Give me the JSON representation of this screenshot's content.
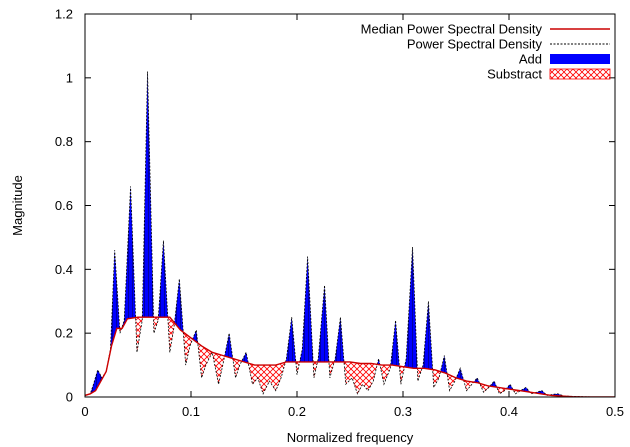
{
  "chart_data": {
    "type": "area",
    "xlabel": "Normalized frequency",
    "ylabel": "Magnitude",
    "xlim": [
      0,
      0.5
    ],
    "ylim": [
      0,
      1.2
    ],
    "xticks": [
      0,
      0.1,
      0.2,
      0.3,
      0.4,
      0.5
    ],
    "xtick_labels": [
      "0",
      "0.1",
      "0.2",
      "0.3",
      "0.4",
      "0.5"
    ],
    "yticks": [
      0,
      0.2,
      0.4,
      0.6,
      0.8,
      1.0,
      1.2
    ],
    "ytick_labels": [
      "0",
      "0.2",
      "0.4",
      "0.6",
      "0.8",
      "1",
      "1.2"
    ],
    "grid": false,
    "legend_position": "top-right",
    "legend": [
      {
        "label": "Median Power Spectral Density",
        "style": "line",
        "color": "#cc0000"
      },
      {
        "label": "Power Spectral Density",
        "style": "dashed",
        "color": "#000000"
      },
      {
        "label": "Add",
        "style": "fill",
        "color": "#0000ff"
      },
      {
        "label": "Substract",
        "style": "hatch",
        "color": "#ff0000"
      }
    ],
    "series": [
      {
        "name": "Median Power Spectral Density",
        "color": "#cc0000",
        "points": [
          [
            0.0,
            0.005
          ],
          [
            0.005,
            0.01
          ],
          [
            0.01,
            0.02
          ],
          [
            0.015,
            0.05
          ],
          [
            0.02,
            0.08
          ],
          [
            0.025,
            0.16
          ],
          [
            0.03,
            0.215
          ],
          [
            0.035,
            0.215
          ],
          [
            0.04,
            0.245
          ],
          [
            0.05,
            0.25
          ],
          [
            0.06,
            0.25
          ],
          [
            0.07,
            0.25
          ],
          [
            0.08,
            0.25
          ],
          [
            0.09,
            0.21
          ],
          [
            0.1,
            0.185
          ],
          [
            0.11,
            0.16
          ],
          [
            0.12,
            0.14
          ],
          [
            0.13,
            0.13
          ],
          [
            0.14,
            0.12
          ],
          [
            0.15,
            0.11
          ],
          [
            0.16,
            0.1
          ],
          [
            0.17,
            0.1
          ],
          [
            0.18,
            0.1
          ],
          [
            0.19,
            0.11
          ],
          [
            0.2,
            0.11
          ],
          [
            0.21,
            0.11
          ],
          [
            0.22,
            0.11
          ],
          [
            0.23,
            0.11
          ],
          [
            0.24,
            0.11
          ],
          [
            0.25,
            0.11
          ],
          [
            0.26,
            0.105
          ],
          [
            0.27,
            0.105
          ],
          [
            0.28,
            0.1
          ],
          [
            0.29,
            0.1
          ],
          [
            0.3,
            0.095
          ],
          [
            0.31,
            0.09
          ],
          [
            0.32,
            0.09
          ],
          [
            0.33,
            0.085
          ],
          [
            0.34,
            0.075
          ],
          [
            0.35,
            0.06
          ],
          [
            0.36,
            0.05
          ],
          [
            0.37,
            0.045
          ],
          [
            0.38,
            0.035
          ],
          [
            0.39,
            0.03
          ],
          [
            0.4,
            0.025
          ],
          [
            0.41,
            0.02
          ],
          [
            0.42,
            0.015
          ],
          [
            0.43,
            0.01
          ],
          [
            0.44,
            0.005
          ],
          [
            0.45,
            0.003
          ],
          [
            0.46,
            0.001
          ],
          [
            0.47,
            0.0
          ],
          [
            0.48,
            0.0
          ],
          [
            0.49,
            0.0
          ],
          [
            0.5,
            0.0
          ]
        ]
      },
      {
        "name": "Power Spectral Density",
        "color": "#000000",
        "points": [
          [
            0.0,
            0.005
          ],
          [
            0.005,
            0.01
          ],
          [
            0.008,
            0.04
          ],
          [
            0.012,
            0.085
          ],
          [
            0.016,
            0.06
          ],
          [
            0.02,
            0.08
          ],
          [
            0.024,
            0.15
          ],
          [
            0.028,
            0.46
          ],
          [
            0.033,
            0.2
          ],
          [
            0.037,
            0.24
          ],
          [
            0.043,
            0.66
          ],
          [
            0.049,
            0.14
          ],
          [
            0.054,
            0.24
          ],
          [
            0.059,
            1.02
          ],
          [
            0.065,
            0.2
          ],
          [
            0.069,
            0.24
          ],
          [
            0.074,
            0.49
          ],
          [
            0.08,
            0.14
          ],
          [
            0.084,
            0.22
          ],
          [
            0.089,
            0.37
          ],
          [
            0.095,
            0.1
          ],
          [
            0.099,
            0.16
          ],
          [
            0.105,
            0.21
          ],
          [
            0.11,
            0.06
          ],
          [
            0.114,
            0.1
          ],
          [
            0.12,
            0.14
          ],
          [
            0.126,
            0.04
          ],
          [
            0.13,
            0.1
          ],
          [
            0.136,
            0.2
          ],
          [
            0.142,
            0.06
          ],
          [
            0.146,
            0.1
          ],
          [
            0.152,
            0.14
          ],
          [
            0.158,
            0.04
          ],
          [
            0.163,
            0.06
          ],
          [
            0.168,
            0.01
          ],
          [
            0.174,
            0.05
          ],
          [
            0.18,
            0.02
          ],
          [
            0.185,
            0.06
          ],
          [
            0.19,
            0.12
          ],
          [
            0.195,
            0.25
          ],
          [
            0.2,
            0.07
          ],
          [
            0.205,
            0.15
          ],
          [
            0.21,
            0.44
          ],
          [
            0.216,
            0.06
          ],
          [
            0.22,
            0.12
          ],
          [
            0.226,
            0.35
          ],
          [
            0.231,
            0.06
          ],
          [
            0.236,
            0.12
          ],
          [
            0.241,
            0.25
          ],
          [
            0.246,
            0.04
          ],
          [
            0.252,
            0.06
          ],
          [
            0.257,
            0.01
          ],
          [
            0.262,
            0.04
          ],
          [
            0.267,
            0.02
          ],
          [
            0.272,
            0.05
          ],
          [
            0.277,
            0.12
          ],
          [
            0.282,
            0.04
          ],
          [
            0.288,
            0.09
          ],
          [
            0.293,
            0.24
          ],
          [
            0.298,
            0.04
          ],
          [
            0.303,
            0.12
          ],
          [
            0.309,
            0.47
          ],
          [
            0.314,
            0.05
          ],
          [
            0.319,
            0.1
          ],
          [
            0.324,
            0.3
          ],
          [
            0.329,
            0.03
          ],
          [
            0.334,
            0.06
          ],
          [
            0.339,
            0.13
          ],
          [
            0.344,
            0.02
          ],
          [
            0.349,
            0.05
          ],
          [
            0.354,
            0.09
          ],
          [
            0.36,
            0.02
          ],
          [
            0.365,
            0.04
          ],
          [
            0.37,
            0.06
          ],
          [
            0.376,
            0.015
          ],
          [
            0.381,
            0.03
          ],
          [
            0.386,
            0.05
          ],
          [
            0.391,
            0.01
          ],
          [
            0.396,
            0.02
          ],
          [
            0.401,
            0.04
          ],
          [
            0.406,
            0.01
          ],
          [
            0.411,
            0.02
          ],
          [
            0.416,
            0.03
          ],
          [
            0.421,
            0.01
          ],
          [
            0.426,
            0.015
          ],
          [
            0.431,
            0.02
          ],
          [
            0.436,
            0.005
          ],
          [
            0.441,
            0.008
          ],
          [
            0.446,
            0.01
          ],
          [
            0.452,
            0.003
          ],
          [
            0.46,
            0.002
          ],
          [
            0.47,
            0.001
          ],
          [
            0.48,
            0.0
          ],
          [
            0.49,
            0.0
          ],
          [
            0.5,
            0.0
          ]
        ]
      }
    ]
  }
}
